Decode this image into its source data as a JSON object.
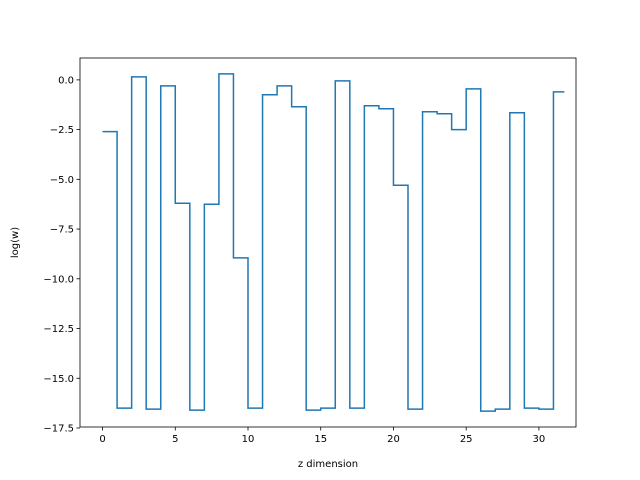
{
  "chart_data": {
    "type": "line",
    "drawstyle": "steps-post",
    "xlabel": "z dimension",
    "ylabel": "log(w)",
    "xlim": [
      -1.55,
      32.55
    ],
    "ylim": [
      -17.45,
      1.1
    ],
    "xticks": [
      0,
      5,
      10,
      15,
      20,
      25,
      30
    ],
    "xtick_labels": [
      "0",
      "5",
      "10",
      "15",
      "20",
      "25",
      "30"
    ],
    "yticks": [
      0,
      -2.5,
      -5,
      -7.5,
      -10,
      -12.5,
      -15,
      -17.5
    ],
    "ytick_labels": [
      "0.0",
      "−2.5",
      "−5.0",
      "−7.5",
      "−10.0",
      "−12.5",
      "−15.0",
      "−17.5"
    ],
    "grid": false,
    "series": [
      {
        "color": "#1f77b4",
        "x": [
          0,
          1,
          2,
          3,
          4,
          5,
          6,
          7,
          8,
          9,
          10,
          11,
          12,
          13,
          14,
          15,
          16,
          17,
          18,
          19,
          20,
          21,
          22,
          23,
          24,
          25,
          26,
          27,
          28,
          29,
          30,
          31
        ],
        "values": [
          -2.6,
          -16.5,
          0.15,
          -16.55,
          -0.3,
          -6.2,
          -16.6,
          -6.25,
          0.3,
          -8.95,
          -16.5,
          -0.75,
          -0.3,
          -1.35,
          -16.6,
          -16.5,
          -0.05,
          -16.5,
          -1.3,
          -1.45,
          -5.3,
          -16.55,
          -1.6,
          -1.7,
          -2.5,
          -0.45,
          -16.65,
          -16.55,
          -1.65,
          -16.5,
          -16.55,
          -0.6
        ]
      }
    ]
  }
}
